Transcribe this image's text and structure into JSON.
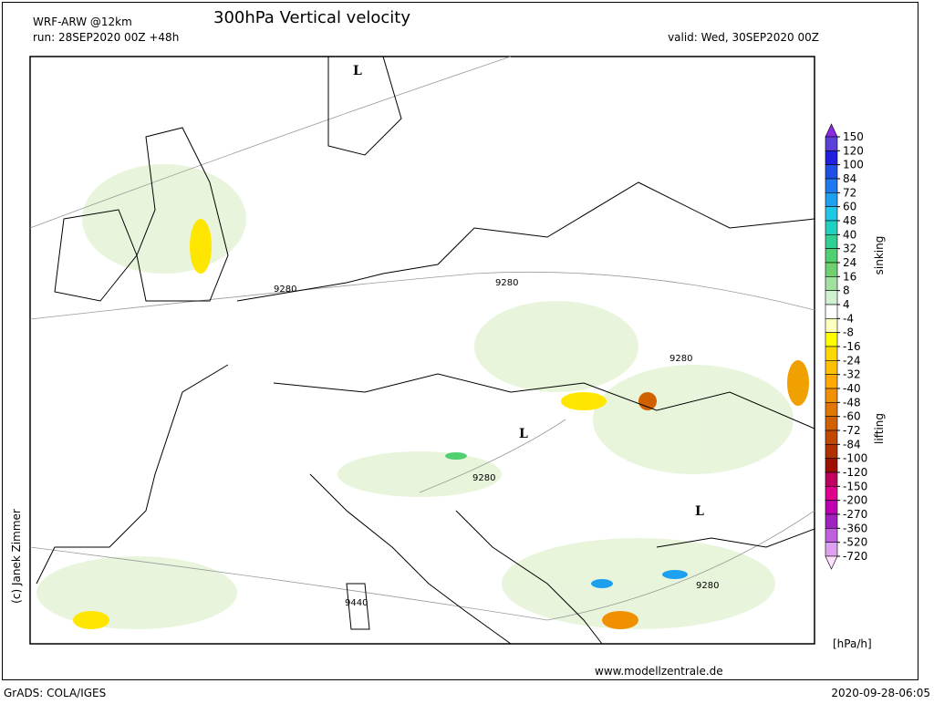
{
  "header": {
    "model": "WRF-ARW @12km",
    "title": "300hPa Vertical velocity",
    "run": "run: 28SEP2020 00Z +48h",
    "valid": "valid: Wed, 30SEP2020 00Z"
  },
  "map": {
    "labels": [
      "L",
      "9280",
      "9280",
      "9280",
      "L",
      "9280",
      "L",
      "9280",
      "9440"
    ]
  },
  "colorbar": {
    "levels": [
      150,
      120,
      100,
      84,
      72,
      60,
      48,
      40,
      32,
      24,
      16,
      8,
      4,
      -4,
      -8,
      -16,
      -24,
      -32,
      -40,
      -48,
      -60,
      -72,
      -84,
      -100,
      -120,
      -150,
      -200,
      -270,
      -360,
      -520,
      -720
    ],
    "colors": [
      "#8a2be2",
      "#5a3fd8",
      "#2020e0",
      "#1e50e8",
      "#1e78f0",
      "#1ea0f0",
      "#20c8e8",
      "#20d0c0",
      "#30d090",
      "#50d070",
      "#70d070",
      "#a0e0a0",
      "#d0f0d0",
      "#ffffff",
      "#ffffc0",
      "#ffff00",
      "#ffd800",
      "#ffc000",
      "#ffa800",
      "#f09000",
      "#e07800",
      "#d06000",
      "#c04800",
      "#b03000",
      "#a01000",
      "#c00060",
      "#e00090",
      "#c000b0",
      "#a020c0",
      "#c060e0",
      "#e0a0f0",
      "#ffe0ff"
    ],
    "upper_label": "sinking",
    "lower_label": "lifting",
    "unit": "[hPa/h]"
  },
  "footer": {
    "credit": "(c) Janek Zimmer",
    "website": "www.modellzentrale.de",
    "software": "GrADS: COLA/IGES",
    "timestamp": "2020-09-28-06:05"
  }
}
